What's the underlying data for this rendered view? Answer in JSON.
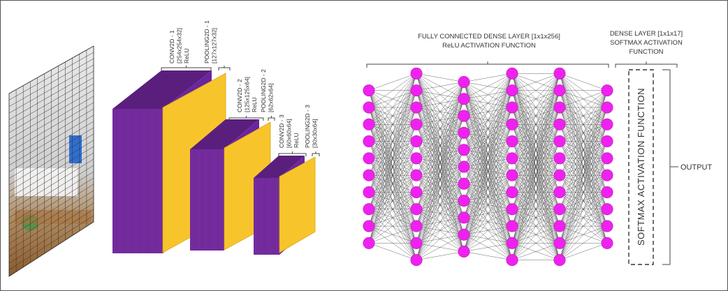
{
  "colors": {
    "feature_map_side": "#7b2fa6",
    "feature_map_side_dark": "#5a1f7d",
    "feature_map_front": "#f7c52b",
    "neuron": "#ee22ee",
    "connection": "#555555",
    "bracket": "#444444"
  },
  "input_image": {
    "description_icon": "input-image-grid"
  },
  "conv_labels": [
    {
      "lines": [
        "CONV2D - 1",
        "[254x254x32]",
        "ReLU"
      ]
    },
    {
      "lines": [
        "POOLING2D - 1",
        "[127x127x32]"
      ]
    },
    {
      "lines": [
        "CONV2D - 2",
        "[125x125x64]",
        "ReLU"
      ]
    },
    {
      "lines": [
        "POOLING2D - 2",
        "[62x62x64]"
      ]
    },
    {
      "lines": [
        "CONV2D - 3",
        "[60x60x64]",
        "ReLU"
      ]
    },
    {
      "lines": [
        "POOLING2D - 3",
        "[30x30x64]"
      ]
    }
  ],
  "dense": {
    "title_line1": "FULLY CONNECTED DENSE LAYER [1x1x256]",
    "title_line2": "ReLU ACTIVATION FUNCTION",
    "neurons_per_column": [
      10,
      12,
      11,
      12,
      12,
      10
    ]
  },
  "softmax": {
    "title_line1": "DENSE LAYER [1x1x17]",
    "title_line2": "SOFTMAX ACTIVATION",
    "title_line3": "FUNCTION",
    "box_label": "SOFTMAX ACTIVATION FUNCTION"
  },
  "output_label": "OUTPUT"
}
